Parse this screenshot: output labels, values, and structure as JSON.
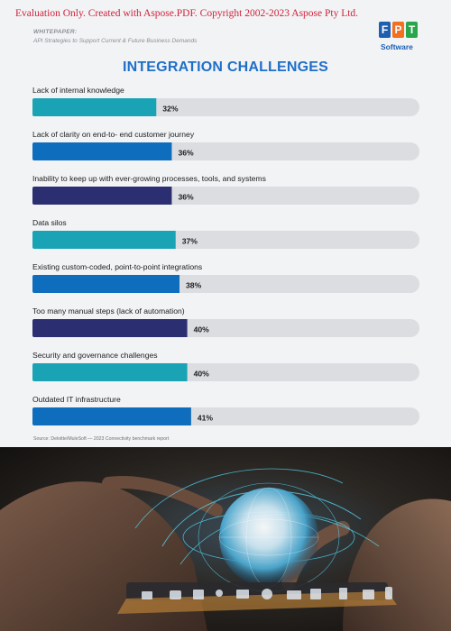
{
  "watermark": "Evaluation Only. Created with Aspose.PDF. Copyright 2002-2023 Aspose Pty Ltd.",
  "header": {
    "label": "WHITEPAPER:",
    "subtitle": "API Strategies to Support Current & Future Business Demands"
  },
  "logo": {
    "letters": [
      "F",
      "P",
      "T"
    ],
    "tile_colors": [
      "#1f5fb0",
      "#f37021",
      "#2aa64a"
    ],
    "tagline": "Software"
  },
  "chart_data": {
    "type": "bar",
    "orientation": "horizontal",
    "title": "INTEGRATION CHALLENGES",
    "xlim": [
      0,
      100
    ],
    "grid": false,
    "legend": "none",
    "categories": [
      "Lack of internal knowledge",
      "Lack of clarity on end-to- end customer journey",
      "Inability to keep up with ever-growing processes, tools, and systems",
      "Data silos",
      "Existing custom-coded, point-to-point integrations",
      "Too many manual steps (lack of automation)",
      "Security and governance challenges",
      "Outdated IT infrastructure"
    ],
    "values": [
      32,
      36,
      36,
      37,
      38,
      40,
      40,
      41
    ],
    "value_labels": [
      "32%",
      "36%",
      "36%",
      "37%",
      "38%",
      "40%",
      "40%",
      "41%"
    ],
    "bar_colors": [
      "#1aa3b5",
      "#0f6dbd",
      "#2b2f72",
      "#1aa3b5",
      "#0f6dbd",
      "#2b2f72",
      "#1aa3b5",
      "#0f6dbd"
    ],
    "track_color": "#dcdde0",
    "source": "Source: Deloitte/MuleSoft — 2023 Connectivity benchmark report"
  }
}
